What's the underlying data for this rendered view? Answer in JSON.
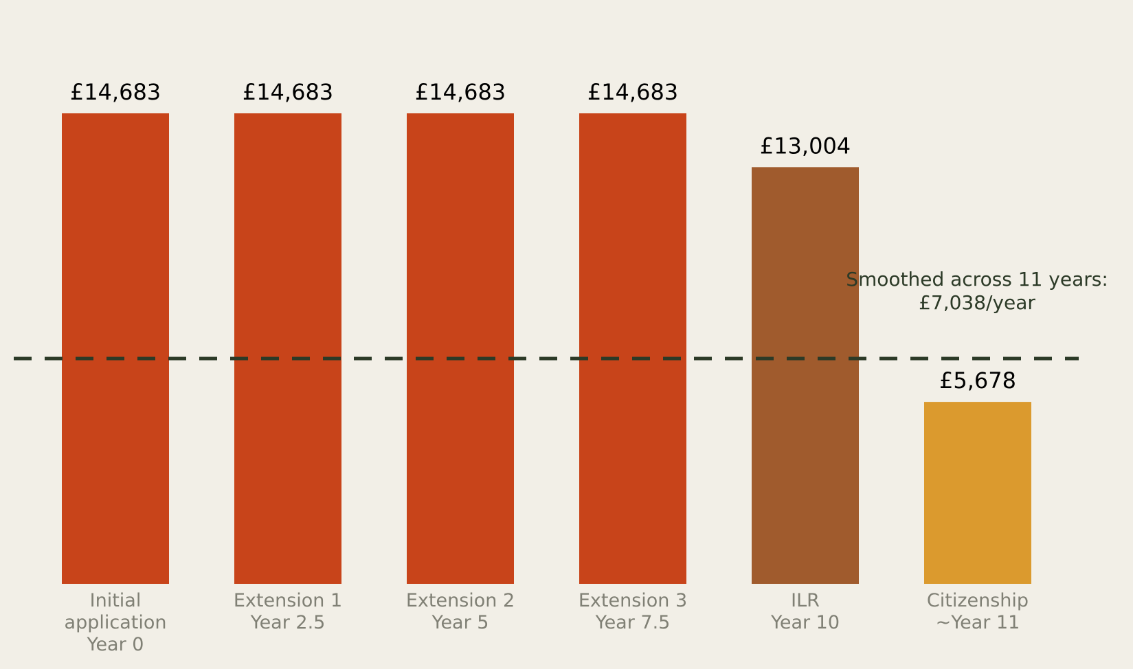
{
  "chart_data": {
    "type": "bar",
    "title": "",
    "xlabel": "",
    "ylabel": "",
    "ylim": [
      0,
      16000
    ],
    "grid": false,
    "legend": "none",
    "categories": [
      [
        "Initial",
        "application",
        "Year 0"
      ],
      [
        "Extension 1",
        "Year 2.5"
      ],
      [
        "Extension 2",
        "Year 5"
      ],
      [
        "Extension 3",
        "Year 7.5"
      ],
      [
        "ILR",
        "Year 10"
      ],
      [
        "Citizenship",
        "~Year 11"
      ]
    ],
    "values": [
      14683,
      14683,
      14683,
      14683,
      13004,
      5678
    ],
    "value_labels": [
      "£14,683",
      "£14,683",
      "£14,683",
      "£14,683",
      "£13,004",
      "£5,678"
    ],
    "colors": [
      "#c8441a",
      "#c8441a",
      "#c8441a",
      "#c8441a",
      "#a05b2d",
      "#db9a2e"
    ],
    "reference_line": {
      "value": 7038,
      "style": "dashed",
      "color": "#2c3a27",
      "label_lines": [
        "Smoothed across 11 years:",
        "£7,038/year"
      ]
    },
    "background": "#f2efe7"
  }
}
